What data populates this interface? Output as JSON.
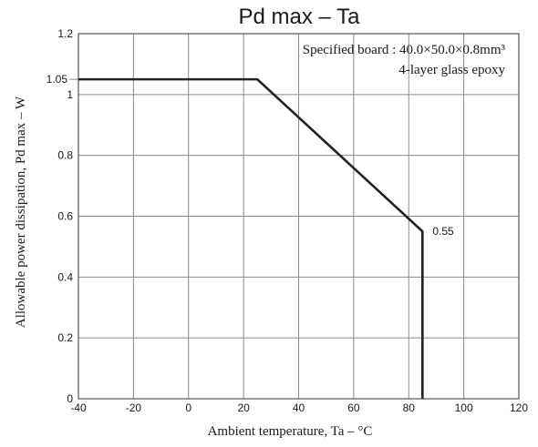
{
  "chart_data": {
    "type": "line",
    "title": "Pd max  –  Ta",
    "xlabel": "Ambient temperature,  Ta  –  °C",
    "ylabel": "Allowable power dissipation,  Pd max  –  W",
    "xlim": [
      -40,
      120
    ],
    "ylim": [
      0,
      1.2
    ],
    "x_ticks": [
      -40,
      -20,
      0,
      20,
      40,
      60,
      80,
      100,
      120
    ],
    "y_ticks": [
      0,
      0.2,
      0.4,
      0.6,
      0.8,
      1,
      1.2
    ],
    "y_ticks_extra": [
      1.05
    ],
    "x_tick_labels": [
      "-40",
      "-20",
      "0",
      "20",
      "40",
      "60",
      "80",
      "100",
      "120"
    ],
    "y_tick_labels": [
      "0",
      "0.2",
      "0.4",
      "0.6",
      "0.8",
      "1",
      "1.2"
    ],
    "y_tick_extra_labels": [
      "1.05"
    ],
    "grid": true,
    "series": [
      {
        "x": [
          -40,
          25,
          85,
          85
        ],
        "y": [
          1.05,
          1.05,
          0.55,
          0
        ]
      }
    ],
    "annotations": [
      {
        "text": "0.55",
        "x": 85,
        "y": 0.55
      }
    ],
    "notes": [
      "Specified board : 40.0×50.0×0.8mm³",
      "4-layer glass epoxy"
    ],
    "line_color": "#222222"
  }
}
